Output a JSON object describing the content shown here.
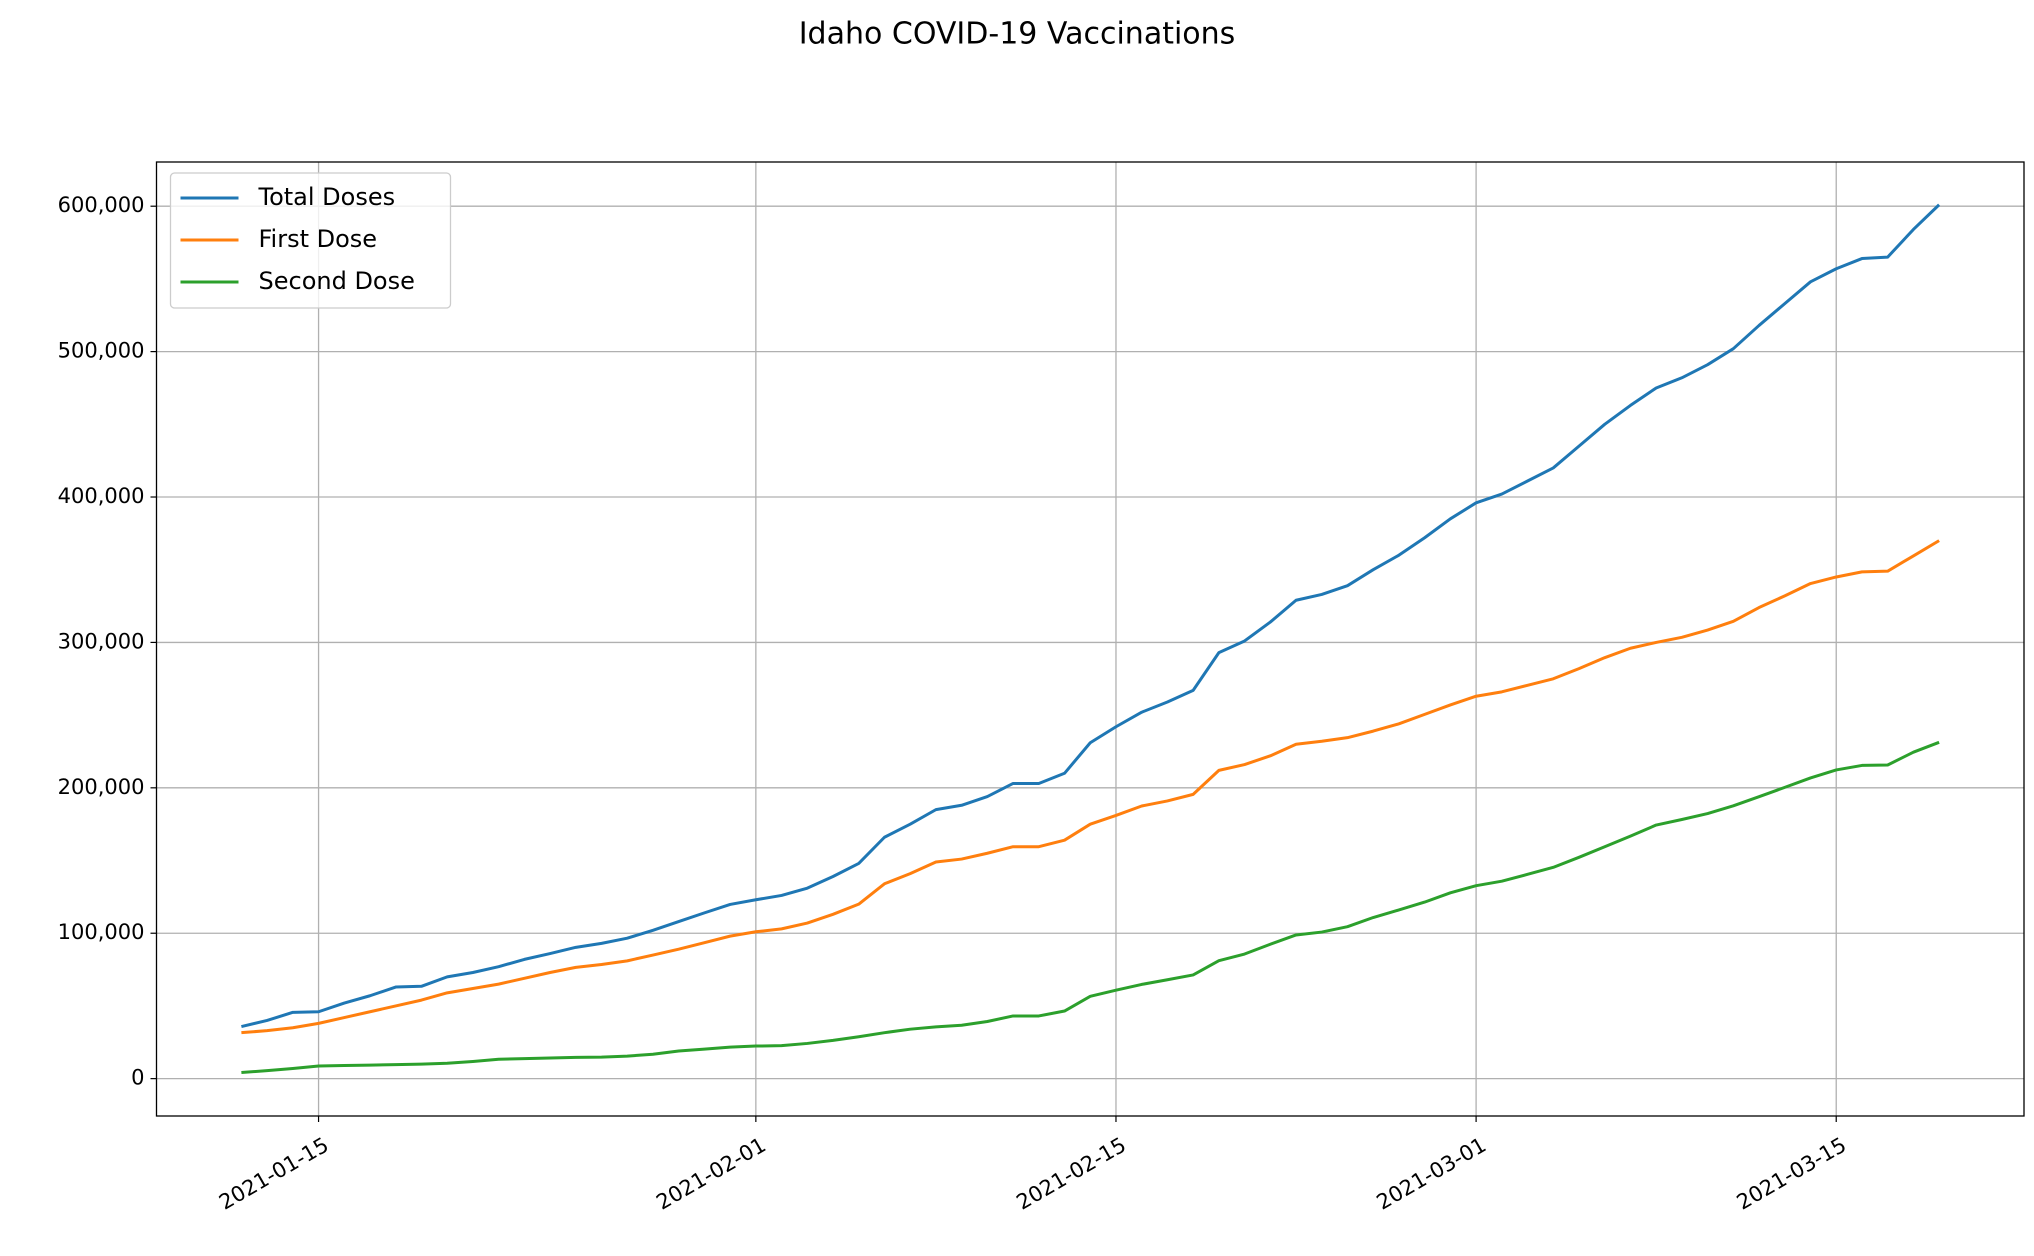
{
  "chart_data": {
    "type": "line",
    "title": "Idaho COVID-19 Vaccinations",
    "x": [
      "2021-01-12",
      "2021-01-13",
      "2021-01-14",
      "2021-01-15",
      "2021-01-16",
      "2021-01-17",
      "2021-01-18",
      "2021-01-19",
      "2021-01-20",
      "2021-01-21",
      "2021-01-22",
      "2021-01-23",
      "2021-01-24",
      "2021-01-25",
      "2021-01-26",
      "2021-01-27",
      "2021-01-28",
      "2021-01-29",
      "2021-01-30",
      "2021-01-31",
      "2021-02-01",
      "2021-02-02",
      "2021-02-03",
      "2021-02-04",
      "2021-02-05",
      "2021-02-06",
      "2021-02-07",
      "2021-02-08",
      "2021-02-09",
      "2021-02-10",
      "2021-02-11",
      "2021-02-12",
      "2021-02-13",
      "2021-02-14",
      "2021-02-15",
      "2021-02-16",
      "2021-02-17",
      "2021-02-18",
      "2021-02-19",
      "2021-02-20",
      "2021-02-21",
      "2021-02-22",
      "2021-02-23",
      "2021-02-24",
      "2021-02-25",
      "2021-02-26",
      "2021-02-27",
      "2021-02-28",
      "2021-03-01",
      "2021-03-02",
      "2021-03-03",
      "2021-03-04",
      "2021-03-05",
      "2021-03-06",
      "2021-03-07",
      "2021-03-08",
      "2021-03-09",
      "2021-03-10",
      "2021-03-11",
      "2021-03-12",
      "2021-03-13",
      "2021-03-14",
      "2021-03-15",
      "2021-03-16",
      "2021-03-17",
      "2021-03-18",
      "2021-03-19"
    ],
    "series": [
      {
        "name": "Total Doses",
        "color": "#1f77b4",
        "values": [
          35800,
          40000,
          45600,
          46000,
          52000,
          57000,
          63000,
          63500,
          70000,
          73000,
          77000,
          82000,
          86000,
          90300,
          93000,
          96600,
          102000,
          108000,
          114000,
          119800,
          123000,
          126000,
          131000,
          139000,
          148000,
          166000,
          175000,
          185000,
          188000,
          194000,
          203000,
          203000,
          210000,
          231000,
          242000,
          252000,
          259000,
          267000,
          293000,
          301000,
          314000,
          329000,
          333000,
          339000,
          350000,
          360000,
          372000,
          385000,
          396000,
          402000,
          411000,
          420000,
          435000,
          450000,
          463000,
          475000,
          482000,
          491000,
          502000,
          518000,
          533000,
          548000,
          557000,
          564000,
          565000,
          584000,
          601000
        ]
      },
      {
        "name": "First Dose",
        "color": "#ff7f0e",
        "values": [
          31600,
          33000,
          35000,
          38000,
          42000,
          46000,
          50000,
          54000,
          59000,
          62000,
          65000,
          69000,
          73000,
          76500,
          78500,
          81000,
          85000,
          89000,
          93500,
          98000,
          101000,
          103000,
          107000,
          113000,
          120000,
          134000,
          141000,
          149000,
          151000,
          155000,
          159500,
          159500,
          164000,
          175000,
          181000,
          187500,
          191000,
          195500,
          212000,
          216000,
          222000,
          230000,
          232000,
          234500,
          239000,
          244000,
          250500,
          257000,
          263000,
          266000,
          270500,
          275000,
          282000,
          289500,
          296000,
          300000,
          303500,
          308500,
          314500,
          324000,
          332000,
          340500,
          345000,
          348500,
          349000,
          359500,
          370000
        ]
      },
      {
        "name": "Second Dose",
        "color": "#2ca02c",
        "values": [
          4200,
          5500,
          7000,
          8700,
          9000,
          9300,
          9600,
          10000,
          10600,
          11800,
          13300,
          13800,
          14200,
          14600,
          14800,
          15500,
          16800,
          19000,
          20300,
          21700,
          22400,
          22700,
          24200,
          26300,
          28800,
          31600,
          34000,
          35600,
          36700,
          39300,
          43100,
          43100,
          46500,
          56600,
          60800,
          64800,
          68000,
          71300,
          81100,
          85700,
          92400,
          98800,
          100800,
          104500,
          110800,
          116000,
          121400,
          127800,
          132700,
          135800,
          140500,
          145300,
          152200,
          159500,
          166800,
          174400,
          178200,
          182300,
          187600,
          193900,
          200300,
          206800,
          212300,
          215400,
          215700,
          224500,
          231300
        ]
      }
    ],
    "xlim": [
      "2021-01-08T16:48Z",
      "2021-03-22T07:12Z"
    ],
    "xticks": [
      "2021-01-15",
      "2021-02-01",
      "2021-02-15",
      "2021-03-01",
      "2021-03-15"
    ],
    "ylim": [
      -25700,
      630400
    ],
    "yticks": [
      0,
      {
        "value": 100000,
        "label": "100,000"
      },
      {
        "value": 200000,
        "label": "200,000"
      },
      {
        "value": 300000,
        "label": "300,000"
      },
      {
        "value": 400000,
        "label": "400,000"
      },
      {
        "value": 500000,
        "label": "500,000"
      },
      {
        "value": 600000,
        "label": "600,000"
      }
    ],
    "grid": true,
    "legend": "upper left"
  }
}
